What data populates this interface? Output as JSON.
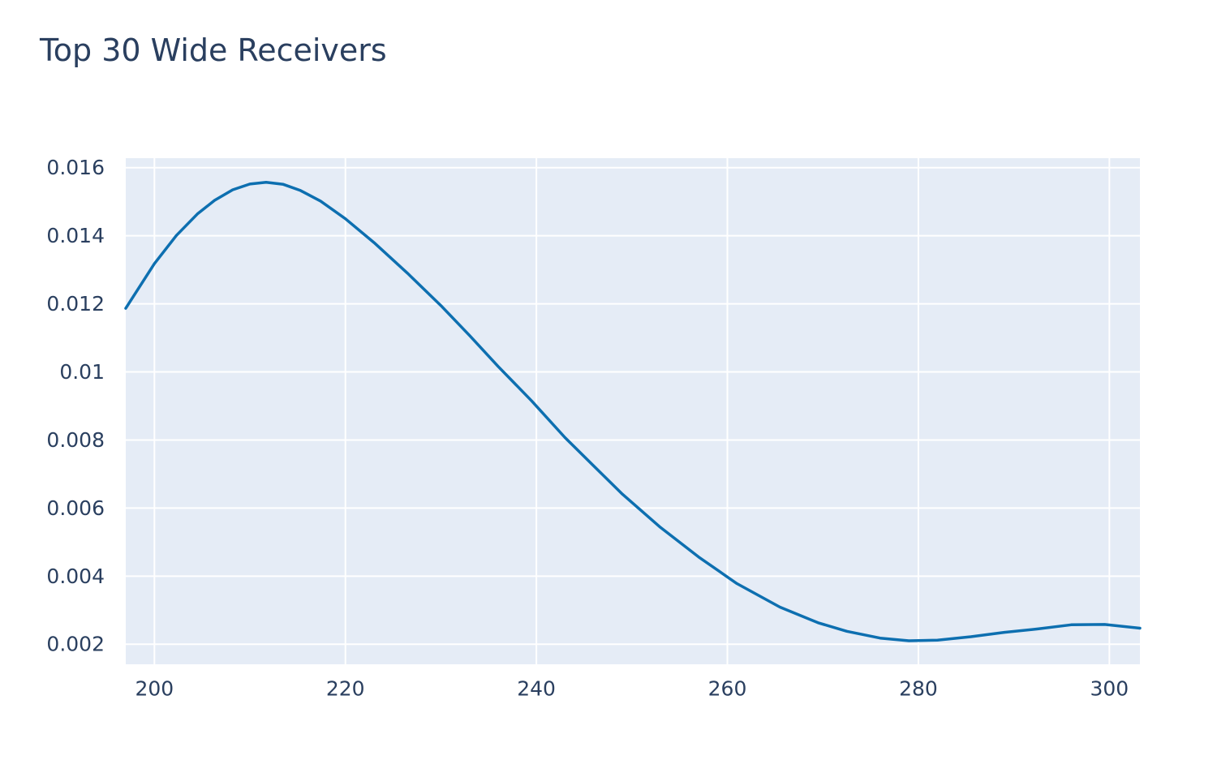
{
  "chart_data": {
    "type": "line",
    "title": "Top 30 Wide Receivers",
    "xlabel": "",
    "ylabel": "",
    "xlim": [
      197,
      303.2
    ],
    "ylim": [
      0.00141,
      0.01628
    ],
    "xticks": [
      200,
      220,
      240,
      260,
      280,
      300
    ],
    "xtick_labels": [
      "200",
      "220",
      "240",
      "260",
      "280",
      "300"
    ],
    "yticks": [
      0.002,
      0.004,
      0.006,
      0.008,
      0.01,
      0.012,
      0.014,
      0.016
    ],
    "ytick_labels": [
      "0.002",
      "0.004",
      "0.006",
      "0.008",
      "0.01",
      "0.012",
      "0.014",
      "0.016"
    ],
    "grid": true,
    "legend": "none",
    "colors": {
      "plot_bg": "#e5ecf6",
      "grid": "#ffffff",
      "line": "#0d6fb0",
      "text": "#2a3f5f"
    },
    "series": [
      {
        "x": [
          197.0,
          200.0,
          202.3,
          204.5,
          206.3,
          208.2,
          210.0,
          211.7,
          213.5,
          215.3,
          217.4,
          220.0,
          223.0,
          226.5,
          230.0,
          233.0,
          236.0,
          239.5,
          243.0,
          246.0,
          249.0,
          253.0,
          257.0,
          261.0,
          265.5,
          269.5,
          272.5,
          276.0,
          279.0,
          282.0,
          285.5,
          289.0,
          292.5,
          296.0,
          299.5,
          303.2
        ],
        "y": [
          0.01187,
          0.01318,
          0.01401,
          0.01464,
          0.01504,
          0.01535,
          0.01552,
          0.01557,
          0.01551,
          0.01533,
          0.01502,
          0.0145,
          0.0138,
          0.0129,
          0.01195,
          0.01107,
          0.01016,
          0.00915,
          0.00807,
          0.00724,
          0.00641,
          0.00543,
          0.00456,
          0.00378,
          0.00309,
          0.00263,
          0.00238,
          0.00218,
          0.0021,
          0.00212,
          0.00222,
          0.00235,
          0.00245,
          0.00257,
          0.00258,
          0.00247
        ]
      }
    ]
  }
}
